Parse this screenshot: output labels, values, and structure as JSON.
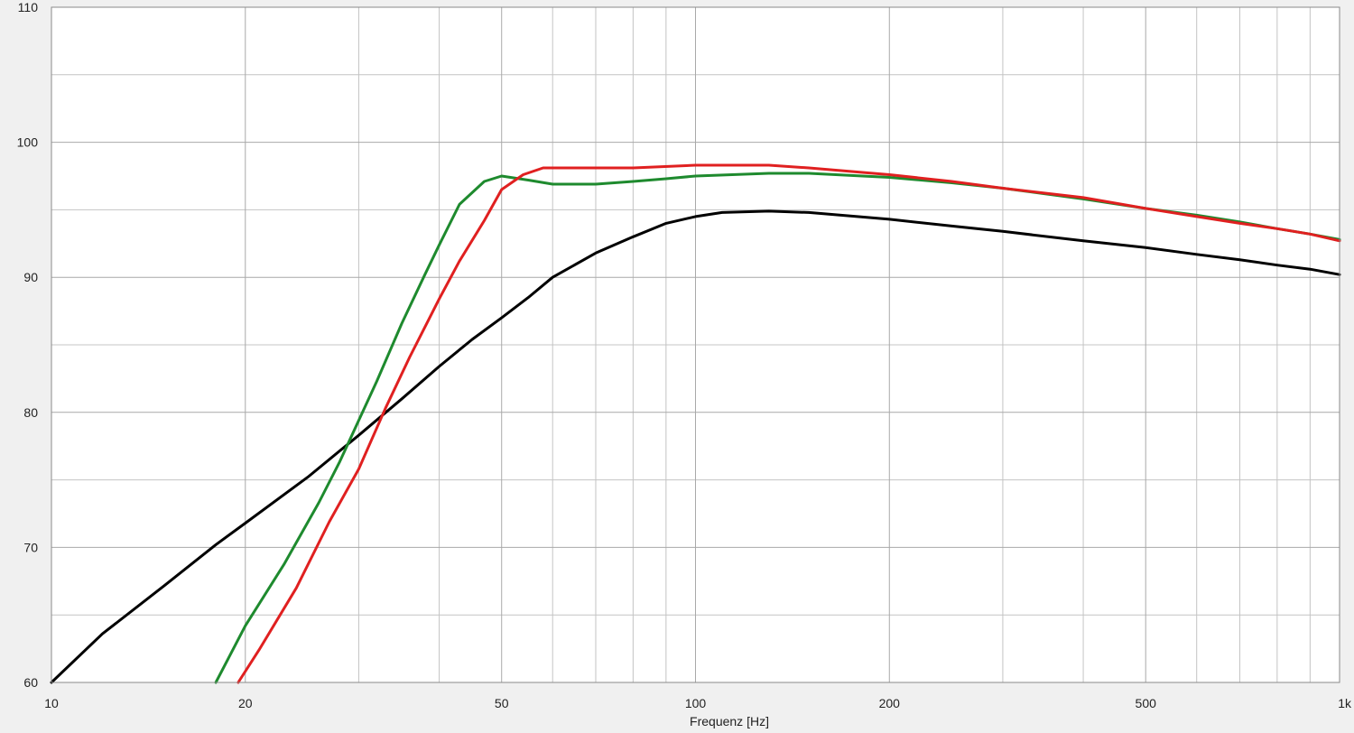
{
  "chart_data": {
    "type": "line",
    "title": "",
    "xlabel": "Frequenz [Hz]",
    "ylabel": "",
    "x_scale": "log",
    "xlim": [
      10,
      1000
    ],
    "ylim": [
      60,
      110
    ],
    "grid": true,
    "x_minor_grid": [
      30,
      40,
      60,
      70,
      80,
      90,
      300,
      400,
      600,
      700,
      800,
      900
    ],
    "y_minor_grid": [
      65,
      75,
      85,
      95,
      105
    ],
    "x_ticks": [
      {
        "value": 10,
        "label": "10"
      },
      {
        "value": 20,
        "label": "20"
      },
      {
        "value": 50,
        "label": "50"
      },
      {
        "value": 100,
        "label": "100"
      },
      {
        "value": 200,
        "label": "200"
      },
      {
        "value": 500,
        "label": "500"
      },
      {
        "value": 1000,
        "label": "1k"
      }
    ],
    "y_ticks": [
      {
        "value": 60,
        "label": "60"
      },
      {
        "value": 70,
        "label": "70"
      },
      {
        "value": 80,
        "label": "80"
      },
      {
        "value": 90,
        "label": "90"
      },
      {
        "value": 100,
        "label": "100"
      },
      {
        "value": 110,
        "label": "110"
      }
    ],
    "series": [
      {
        "color": "#000000",
        "points": [
          [
            10,
            60.0
          ],
          [
            12,
            63.6
          ],
          [
            15,
            67.2
          ],
          [
            18,
            70.2
          ],
          [
            20,
            71.8
          ],
          [
            25,
            75.2
          ],
          [
            30,
            78.3
          ],
          [
            35,
            81.0
          ],
          [
            40,
            83.4
          ],
          [
            45,
            85.4
          ],
          [
            50,
            87.0
          ],
          [
            55,
            88.5
          ],
          [
            60,
            90.0
          ],
          [
            70,
            91.8
          ],
          [
            80,
            93.0
          ],
          [
            90,
            94.0
          ],
          [
            100,
            94.5
          ],
          [
            110,
            94.8
          ],
          [
            130,
            94.9
          ],
          [
            150,
            94.8
          ],
          [
            200,
            94.3
          ],
          [
            250,
            93.8
          ],
          [
            300,
            93.4
          ],
          [
            400,
            92.7
          ],
          [
            500,
            92.2
          ],
          [
            600,
            91.7
          ],
          [
            700,
            91.3
          ],
          [
            800,
            90.9
          ],
          [
            900,
            90.6
          ],
          [
            1000,
            90.2
          ]
        ]
      },
      {
        "color": "#1e8a2e",
        "points": [
          [
            18,
            60.0
          ],
          [
            20,
            64.2
          ],
          [
            23,
            68.8
          ],
          [
            26,
            73.3
          ],
          [
            28,
            76.3
          ],
          [
            30,
            79.4
          ],
          [
            32,
            82.3
          ],
          [
            35,
            86.6
          ],
          [
            38,
            90.2
          ],
          [
            40,
            92.4
          ],
          [
            43,
            95.4
          ],
          [
            47,
            97.1
          ],
          [
            50,
            97.5
          ],
          [
            55,
            97.2
          ],
          [
            60,
            96.9
          ],
          [
            70,
            96.9
          ],
          [
            80,
            97.1
          ],
          [
            90,
            97.3
          ],
          [
            100,
            97.5
          ],
          [
            130,
            97.7
          ],
          [
            150,
            97.7
          ],
          [
            200,
            97.4
          ],
          [
            250,
            97.0
          ],
          [
            300,
            96.6
          ],
          [
            400,
            95.8
          ],
          [
            500,
            95.1
          ],
          [
            600,
            94.6
          ],
          [
            700,
            94.1
          ],
          [
            800,
            93.6
          ],
          [
            900,
            93.2
          ],
          [
            1000,
            92.8
          ]
        ]
      },
      {
        "color": "#e02020",
        "points": [
          [
            19.5,
            60.0
          ],
          [
            21,
            62.4
          ],
          [
            24,
            67.0
          ],
          [
            27,
            71.9
          ],
          [
            30,
            75.8
          ],
          [
            33,
            80.3
          ],
          [
            36,
            84.1
          ],
          [
            40,
            88.4
          ],
          [
            43,
            91.2
          ],
          [
            47,
            94.2
          ],
          [
            50,
            96.5
          ],
          [
            54,
            97.6
          ],
          [
            58,
            98.1
          ],
          [
            70,
            98.1
          ],
          [
            80,
            98.1
          ],
          [
            100,
            98.3
          ],
          [
            130,
            98.3
          ],
          [
            150,
            98.1
          ],
          [
            200,
            97.6
          ],
          [
            250,
            97.1
          ],
          [
            300,
            96.6
          ],
          [
            400,
            95.9
          ],
          [
            500,
            95.1
          ],
          [
            600,
            94.5
          ],
          [
            700,
            94.0
          ],
          [
            800,
            93.6
          ],
          [
            900,
            93.2
          ],
          [
            1000,
            92.7
          ]
        ]
      }
    ]
  }
}
